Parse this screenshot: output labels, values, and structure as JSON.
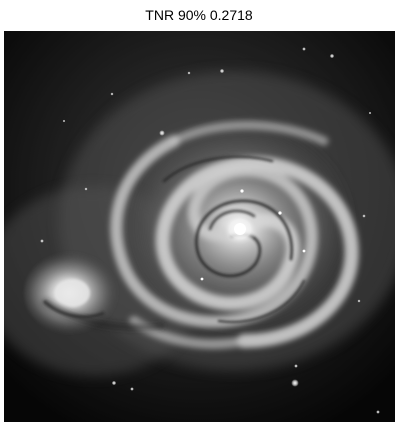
{
  "figure": {
    "title": "TNR 90% 0.2718"
  },
  "image": {
    "subject": "grayscale-spiral-galaxy",
    "palette": {
      "background": "#0b0b0b",
      "halo": "#3a3a3a",
      "arm": "#bdbdbd",
      "core": "#ffffff",
      "dust": "#1a1a1a"
    }
  }
}
